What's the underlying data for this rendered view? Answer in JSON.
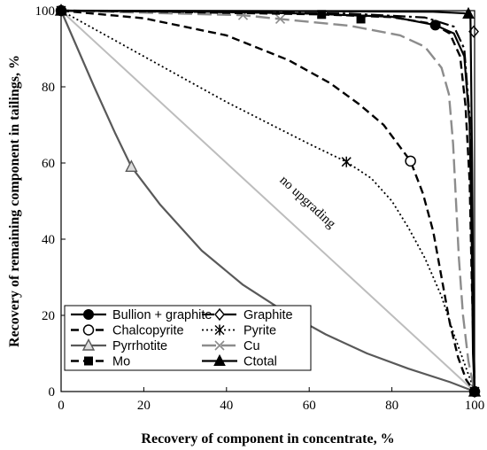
{
  "chart_data": {
    "type": "line",
    "xlabel": "Recovery of component in concentrate, %",
    "ylabel": "Recovery of remaining component in tailings, %",
    "xlim": [
      0,
      100
    ],
    "ylim": [
      0,
      100
    ],
    "xticks": [
      "0",
      "20",
      "40",
      "60",
      "80",
      "100"
    ],
    "yticks": [
      "0",
      "20",
      "40",
      "60",
      "80",
      "100"
    ],
    "grid": false,
    "legend_position": "bottom-left inside plot",
    "annotation": {
      "text": "no upgrading",
      "x": 59,
      "y": 49
    },
    "series": [
      {
        "name": "Bullion + graphite",
        "color": "#000000",
        "dash": "solid",
        "marker": "filled-circle",
        "points": [
          [
            0,
            100
          ],
          [
            30,
            99.8
          ],
          [
            60,
            99.2
          ],
          [
            80,
            98.4
          ],
          [
            90.5,
            96.2
          ],
          [
            95,
            94
          ],
          [
            97.5,
            88
          ],
          [
            98.8,
            70
          ],
          [
            99.3,
            40
          ],
          [
            99.6,
            10
          ],
          [
            100,
            0
          ]
        ],
        "markers": [
          [
            0,
            100
          ],
          [
            90.5,
            96.2
          ],
          [
            100,
            0
          ]
        ]
      },
      {
        "name": "Graphite",
        "color": "#000000",
        "dash": "dashdot-long",
        "marker": "open-diamond",
        "points": [
          [
            0,
            100
          ],
          [
            40,
            99.6
          ],
          [
            70,
            99.2
          ],
          [
            88,
            98.2
          ],
          [
            95,
            95.8
          ],
          [
            97.5,
            90
          ],
          [
            98.8,
            72
          ],
          [
            99.3,
            50
          ],
          [
            99.6,
            25
          ],
          [
            100,
            0
          ]
        ],
        "markers": [
          [
            0,
            100
          ],
          [
            99.8,
            94.5
          ],
          [
            100,
            0
          ]
        ]
      },
      {
        "name": "Chalcopyrite",
        "color": "#000000",
        "dash": "dash",
        "marker": "open-circle",
        "points": [
          [
            0,
            100
          ],
          [
            20,
            98
          ],
          [
            40,
            93.5
          ],
          [
            55,
            87
          ],
          [
            65,
            81
          ],
          [
            72,
            75.5
          ],
          [
            78,
            70
          ],
          [
            84.5,
            60.5
          ],
          [
            87.5,
            52
          ],
          [
            90,
            42
          ],
          [
            92,
            30
          ],
          [
            94,
            18
          ],
          [
            96,
            9
          ],
          [
            98,
            3
          ],
          [
            100,
            0
          ]
        ],
        "markers": [
          [
            0,
            100
          ],
          [
            84.5,
            60.5
          ],
          [
            100,
            0
          ]
        ]
      },
      {
        "name": "Pyrite",
        "color": "#000000",
        "dash": "dot",
        "marker": "asterisk",
        "points": [
          [
            0,
            100
          ],
          [
            10,
            94
          ],
          [
            20,
            88
          ],
          [
            30,
            82
          ],
          [
            40,
            76
          ],
          [
            50,
            70.5
          ],
          [
            60,
            65
          ],
          [
            69,
            60.3
          ],
          [
            75,
            56
          ],
          [
            80,
            50
          ],
          [
            84,
            43
          ],
          [
            88,
            35
          ],
          [
            92,
            25
          ],
          [
            95,
            15
          ],
          [
            98,
            6
          ],
          [
            100,
            0
          ]
        ],
        "markers": [
          [
            0,
            100
          ],
          [
            69,
            60.3
          ],
          [
            100,
            0
          ]
        ]
      },
      {
        "name": "Pyrrhotite",
        "color": "#595959",
        "dash": "solid",
        "marker": "open-triangle",
        "points": [
          [
            0,
            100
          ],
          [
            8,
            80
          ],
          [
            13,
            68
          ],
          [
            17,
            59
          ],
          [
            24,
            49
          ],
          [
            34,
            37
          ],
          [
            44,
            28
          ],
          [
            54,
            21
          ],
          [
            64,
            15
          ],
          [
            74,
            10
          ],
          [
            84,
            6
          ],
          [
            94,
            2.5
          ],
          [
            100,
            0
          ]
        ],
        "markers": [
          [
            0,
            100
          ],
          [
            17,
            59
          ],
          [
            100,
            0
          ]
        ]
      },
      {
        "name": "Cu",
        "color": "#8c8c8c",
        "dash": "long-dash",
        "marker": "cross",
        "points": [
          [
            0,
            100
          ],
          [
            44,
            98.8
          ],
          [
            53,
            97.8
          ],
          [
            70,
            96
          ],
          [
            82,
            93.5
          ],
          [
            88,
            90.5
          ],
          [
            92,
            85
          ],
          [
            93.8,
            78
          ],
          [
            94.8,
            65
          ],
          [
            95.5,
            50
          ],
          [
            96.2,
            35
          ],
          [
            97.2,
            20
          ],
          [
            98.5,
            8
          ],
          [
            100,
            0
          ]
        ],
        "markers": [
          [
            0,
            100
          ],
          [
            44,
            98.8
          ],
          [
            53,
            97.8
          ],
          [
            100,
            0
          ]
        ]
      },
      {
        "name": "Mo",
        "color": "#000000",
        "dash": "dash",
        "marker": "filled-square",
        "points": [
          [
            0,
            100
          ],
          [
            20,
            99.8
          ],
          [
            63,
            99
          ],
          [
            80,
            98.3
          ],
          [
            90,
            96.5
          ],
          [
            94,
            94
          ],
          [
            96.5,
            88
          ],
          [
            97.8,
            75
          ],
          [
            98.8,
            55
          ],
          [
            99.3,
            30
          ],
          [
            100,
            0
          ]
        ],
        "markers": [
          [
            0,
            100
          ],
          [
            63,
            99
          ],
          [
            72.5,
            97.8
          ],
          [
            100,
            0
          ]
        ]
      },
      {
        "name": "Ctotal",
        "color": "#000000",
        "dash": "solid",
        "marker": "filled-triangle",
        "points": [
          [
            0,
            100
          ],
          [
            50,
            99.9
          ],
          [
            90,
            99.7
          ],
          [
            97.5,
            99.3
          ],
          [
            98.5,
            99
          ],
          [
            99,
            98
          ],
          [
            99.4,
            60
          ],
          [
            99.7,
            20
          ],
          [
            100,
            0
          ]
        ],
        "markers": [
          [
            0,
            100
          ],
          [
            98.5,
            99.2
          ],
          [
            100,
            0
          ]
        ]
      },
      {
        "name": "no upgrading",
        "color": "#bdbdbd",
        "dash": "solid",
        "marker": "none",
        "points": [
          [
            0,
            100
          ],
          [
            100,
            0
          ]
        ],
        "markers": []
      }
    ]
  }
}
